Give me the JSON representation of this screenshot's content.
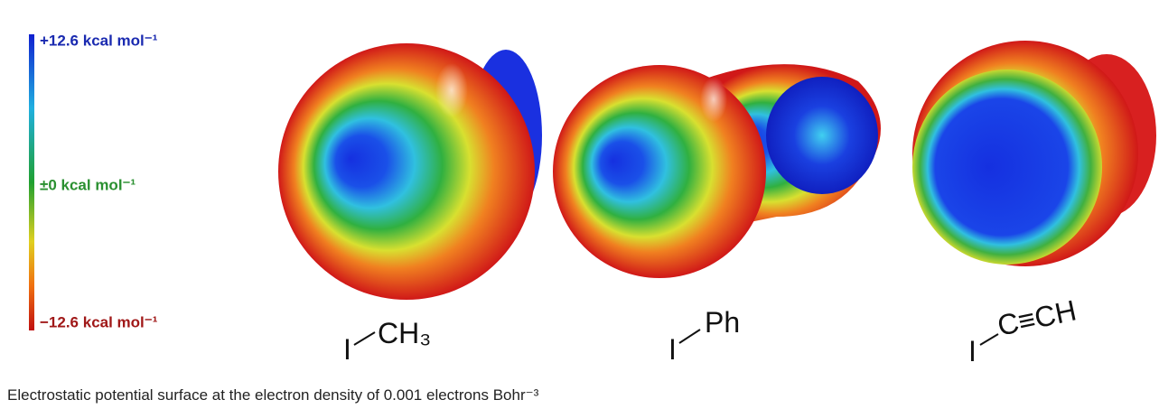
{
  "scale": {
    "top_label": "+12.6 kcal mol⁻¹",
    "middle_label": "±0 kcal mol⁻¹",
    "bottom_label": "−12.6 kcal mol⁻¹"
  },
  "molecules": [
    {
      "atom": "I",
      "group": "CH₃"
    },
    {
      "atom": "I",
      "group": "Ph"
    },
    {
      "atom": "I",
      "group": "C≡CH"
    }
  ],
  "caption": "Electrostatic potential surface at the electron density of 0.001 electrons Bohr⁻³"
}
